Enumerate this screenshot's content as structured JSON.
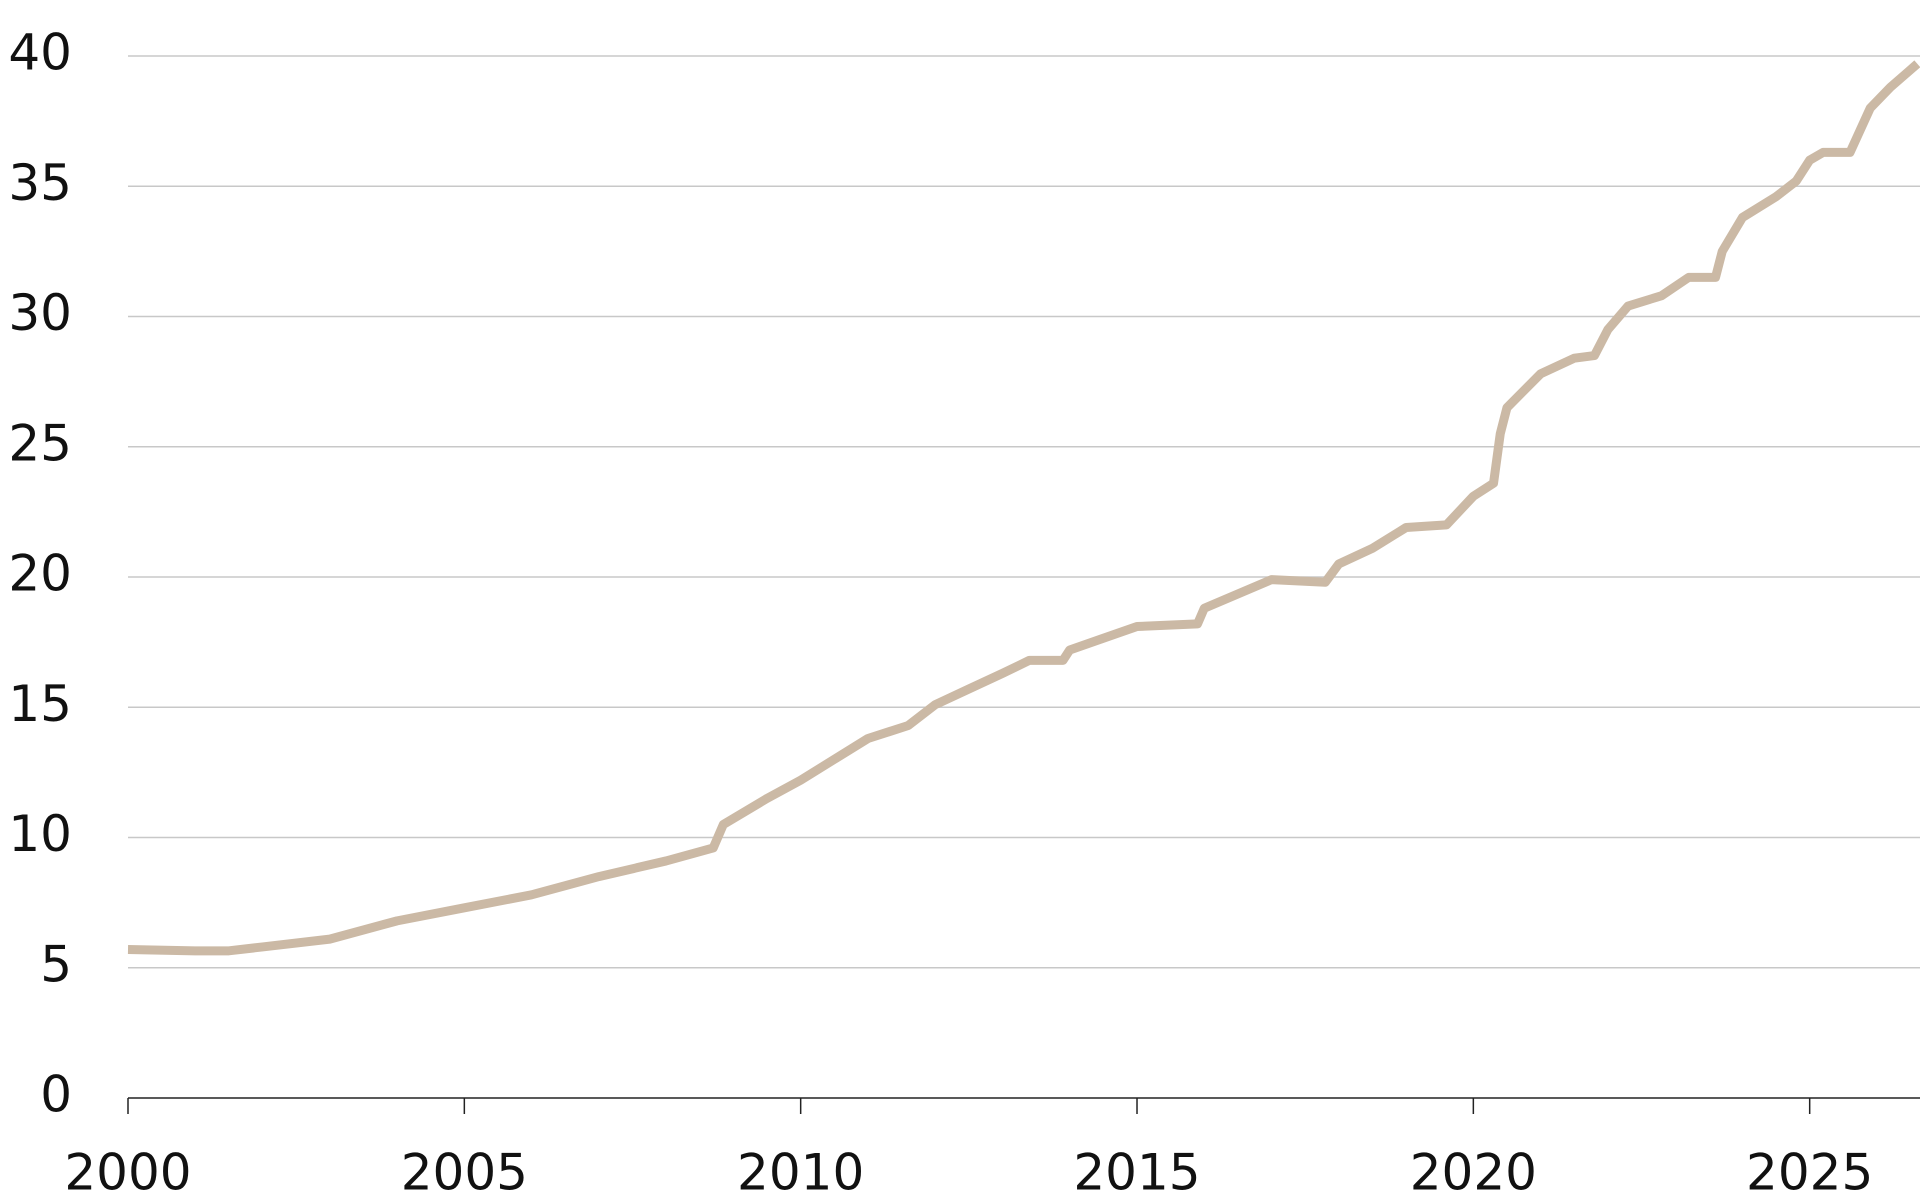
{
  "chart_data": {
    "type": "line",
    "x": [
      2000,
      2001,
      2001.5,
      2002,
      2003,
      2004,
      2005,
      2006,
      2007,
      2008,
      2008.7,
      2008.85,
      2009.5,
      2010,
      2010.5,
      2011,
      2011.6,
      2012,
      2012.5,
      2013,
      2013.4,
      2013.9,
      2014,
      2015,
      2015.9,
      2016,
      2017,
      2017.8,
      2018,
      2018.5,
      2019,
      2019.6,
      2020,
      2020.3,
      2020.4,
      2020.5,
      2021,
      2021.5,
      2021.8,
      2022,
      2022.3,
      2022.8,
      2023.2,
      2023.6,
      2023.7,
      2024,
      2024.5,
      2024.8,
      2025,
      2025.2,
      2025.6,
      2025.9,
      2026.2,
      2026.6
    ],
    "values": [
      5.7,
      5.65,
      5.65,
      5.8,
      6.1,
      6.8,
      7.3,
      7.8,
      8.5,
      9.1,
      9.6,
      10.5,
      11.5,
      12.2,
      13.0,
      13.8,
      14.3,
      15.1,
      15.7,
      16.3,
      16.8,
      16.8,
      17.2,
      18.1,
      18.2,
      18.8,
      19.9,
      19.8,
      20.5,
      21.1,
      21.9,
      22.0,
      23.1,
      23.6,
      25.5,
      26.5,
      27.8,
      28.4,
      28.5,
      29.5,
      30.4,
      30.8,
      31.5,
      31.5,
      32.5,
      33.8,
      34.6,
      35.2,
      36.0,
      36.3,
      36.3,
      38.0,
      38.8,
      39.7
    ],
    "color": "#cbb9a5",
    "xlim": [
      2000,
      2026.64
    ],
    "xticks": [
      2000,
      2005,
      2010,
      2015,
      2020,
      2025
    ],
    "ylim": [
      0,
      40
    ],
    "yticks": [
      0,
      5,
      10,
      15,
      20,
      25,
      30,
      35,
      40
    ],
    "grid": true
  }
}
